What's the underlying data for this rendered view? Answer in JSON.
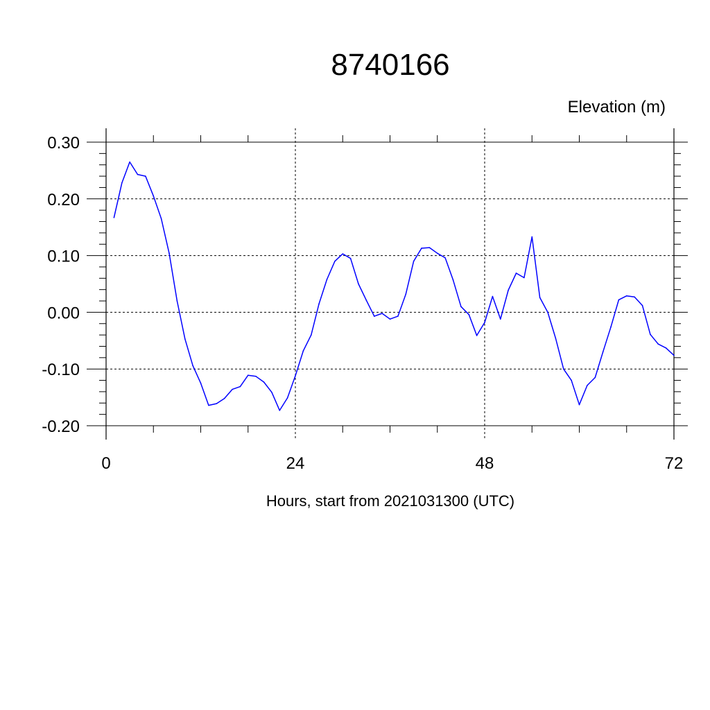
{
  "chart_data": {
    "type": "line",
    "title": "8740166",
    "unit_label": "Elevation (m)",
    "xlabel": "Hours, start from 2021031300 (UTC)",
    "xlim": [
      0,
      72
    ],
    "ylim": [
      -0.2,
      0.3
    ],
    "x_ticks": [
      0,
      24,
      48,
      72
    ],
    "x_tick_labels": [
      "0",
      "24",
      "48",
      "72"
    ],
    "y_ticks": [
      -0.2,
      -0.1,
      0.0,
      0.1,
      0.2,
      0.3
    ],
    "y_tick_labels": [
      "-0.20",
      "-0.10",
      "0.00",
      "0.10",
      "0.20",
      "0.30"
    ],
    "grid": true,
    "line_color": "#0000ff",
    "series": [
      {
        "x": [
          1,
          2,
          3,
          4,
          5,
          6,
          7,
          8,
          9,
          10,
          11,
          12,
          13,
          14,
          15,
          16,
          17,
          18,
          19,
          20,
          21,
          22,
          23,
          24,
          25,
          26,
          27,
          28,
          29,
          30,
          31,
          32,
          33,
          34,
          35,
          36,
          37,
          38,
          39,
          40,
          41,
          42,
          43,
          44,
          45,
          46,
          47,
          48,
          49,
          50,
          51,
          52,
          53,
          54,
          55,
          56,
          57,
          58,
          59,
          60,
          61,
          62,
          63,
          64,
          65,
          66,
          67,
          68,
          69,
          70,
          71,
          72
        ],
        "y": [
          0.167,
          0.228,
          0.265,
          0.243,
          0.24,
          0.205,
          0.165,
          0.104,
          0.02,
          -0.047,
          -0.094,
          -0.125,
          -0.164,
          -0.161,
          -0.152,
          -0.136,
          -0.131,
          -0.111,
          -0.113,
          -0.123,
          -0.141,
          -0.173,
          -0.151,
          -0.112,
          -0.068,
          -0.04,
          0.015,
          0.058,
          0.09,
          0.103,
          0.095,
          0.05,
          0.021,
          -0.007,
          -0.002,
          -0.012,
          -0.007,
          0.032,
          0.09,
          0.113,
          0.114,
          0.104,
          0.096,
          0.057,
          0.01,
          -0.004,
          -0.041,
          -0.018,
          0.028,
          -0.012,
          0.039,
          0.069,
          0.061,
          0.133,
          0.026,
          0.0,
          -0.046,
          -0.1,
          -0.12,
          -0.163,
          -0.129,
          -0.115,
          -0.07,
          -0.026,
          0.022,
          0.029,
          0.027,
          0.012,
          -0.039,
          -0.056,
          -0.063,
          -0.076
        ]
      }
    ]
  }
}
